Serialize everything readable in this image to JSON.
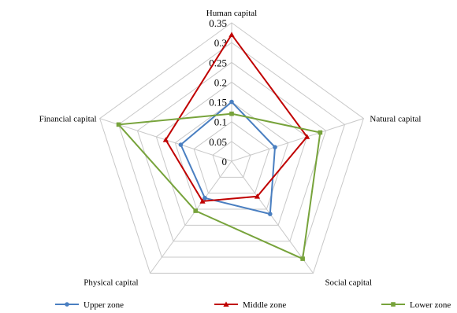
{
  "chart_data": {
    "type": "radar",
    "axes": [
      "Human capital",
      "Natural capital",
      "Social capital",
      "Physical capital",
      "Financial capital"
    ],
    "rlim": [
      0,
      0.35
    ],
    "ticks": [
      {
        "value": 0,
        "label": "0"
      },
      {
        "value": 0.05,
        "label": "0.05"
      },
      {
        "value": 0.1,
        "label": "0.1"
      },
      {
        "value": 0.15,
        "label": "0.15"
      },
      {
        "value": 0.2,
        "label": "0.2"
      },
      {
        "value": 0.25,
        "label": "0.25"
      },
      {
        "value": 0.3,
        "label": "0.3"
      },
      {
        "value": 0.35,
        "label": "0.35"
      }
    ],
    "grid": true,
    "legend": "bottom",
    "series": [
      {
        "name": "Upper zone",
        "color": "#4a7fc1",
        "marker": "circle",
        "values": [
          0.15,
          0.115,
          0.165,
          0.115,
          0.135
        ]
      },
      {
        "name": "Middle zone",
        "color": "#c00000",
        "marker": "triangle",
        "values": [
          0.32,
          0.2,
          0.11,
          0.125,
          0.175
        ]
      },
      {
        "name": "Lower zone",
        "color": "#77a33b",
        "marker": "square",
        "values": [
          0.12,
          0.235,
          0.305,
          0.155,
          0.3
        ]
      }
    ]
  }
}
